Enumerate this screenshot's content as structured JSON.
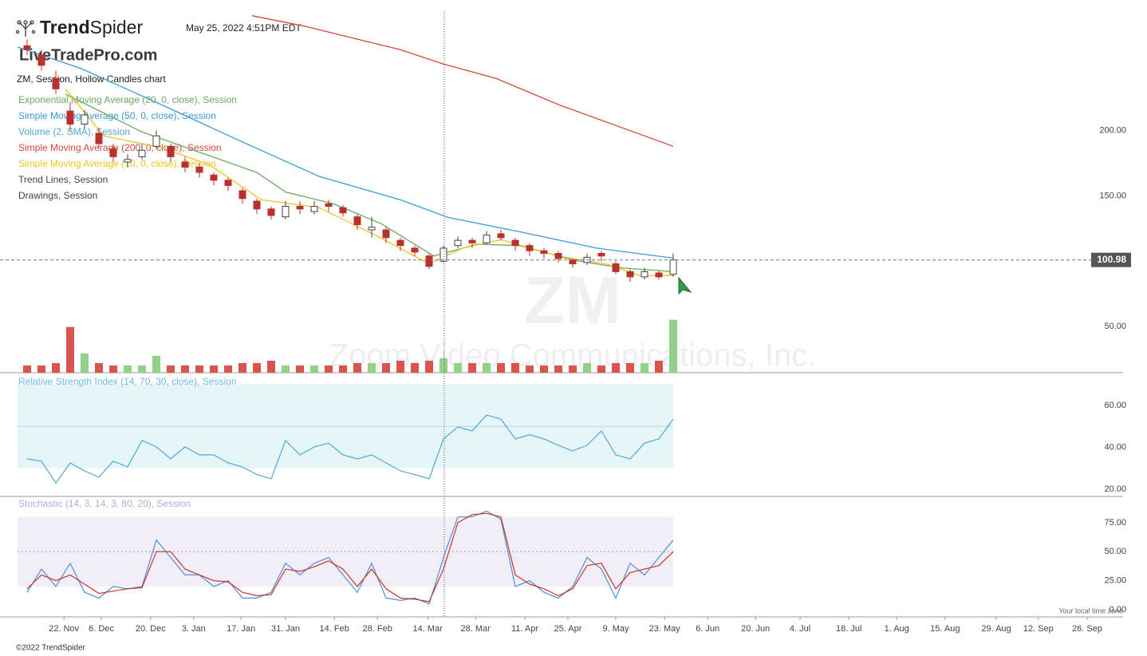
{
  "header": {
    "logo": {
      "bold": "Trend",
      "light": "Spider"
    },
    "timestamp": "May 25, 2022 4:51PM EDT",
    "watermark_site": "LiveTradePro.com",
    "chart_label": "ZM, Session, Hollow Candles chart"
  },
  "chart_data": [
    {
      "type": "candlestick",
      "symbol_watermark": "ZM",
      "company_watermark": "Zoom Video Communications, Inc.",
      "x": [
        2,
        5,
        8,
        11,
        14,
        17,
        20,
        23,
        26,
        29,
        32,
        35,
        38,
        41,
        44,
        47,
        50,
        53,
        56,
        59,
        62,
        65,
        68,
        71,
        74,
        77,
        80,
        83,
        86,
        89,
        92,
        95,
        98,
        101,
        104,
        107,
        110,
        113,
        116,
        119,
        122,
        125,
        128,
        131,
        134,
        137
      ],
      "candles": [
        [
          265,
          270,
          258,
          262
        ],
        [
          258,
          262,
          246,
          250
        ],
        [
          240,
          246,
          228,
          232
        ],
        [
          215,
          222,
          200,
          205
        ],
        [
          205,
          216,
          202,
          212
        ],
        [
          198,
          202,
          186,
          190
        ],
        [
          186,
          190,
          176,
          180
        ],
        [
          176,
          182,
          172,
          178
        ],
        [
          180,
          190,
          178,
          185
        ],
        [
          188,
          200,
          186,
          196
        ],
        [
          188,
          190,
          176,
          180
        ],
        [
          176,
          180,
          168,
          172
        ],
        [
          172,
          175,
          164,
          168
        ],
        [
          166,
          168,
          158,
          162
        ],
        [
          162,
          164,
          154,
          158
        ],
        [
          154,
          156,
          144,
          148
        ],
        [
          146,
          148,
          136,
          140
        ],
        [
          140,
          142,
          132,
          135
        ],
        [
          134,
          146,
          132,
          142
        ],
        [
          142,
          146,
          136,
          140
        ],
        [
          138,
          146,
          136,
          142
        ],
        [
          144,
          147,
          138,
          142
        ],
        [
          141,
          143,
          134,
          137
        ],
        [
          134,
          136,
          124,
          128
        ],
        [
          124,
          134,
          118,
          126
        ],
        [
          124,
          126,
          114,
          118
        ],
        [
          116,
          118,
          108,
          112
        ],
        [
          110,
          112,
          104,
          107
        ],
        [
          104,
          106,
          94,
          96
        ],
        [
          100,
          112,
          99,
          110
        ],
        [
          112,
          119,
          110,
          116
        ],
        [
          116,
          118,
          110,
          114
        ],
        [
          114,
          123,
          113,
          120
        ],
        [
          121,
          124,
          116,
          118
        ],
        [
          116,
          118,
          108,
          112
        ],
        [
          112,
          114,
          104,
          108
        ],
        [
          108,
          110,
          102,
          106
        ],
        [
          106,
          108,
          99,
          102
        ],
        [
          101,
          102,
          95,
          98
        ],
        [
          99,
          106,
          97,
          103
        ],
        [
          106,
          108,
          100,
          104
        ],
        [
          98,
          100,
          90,
          92
        ],
        [
          92,
          94,
          84,
          88
        ],
        [
          88,
          95,
          86,
          92
        ],
        [
          91,
          93,
          86,
          88
        ],
        [
          90,
          106,
          88,
          100.98
        ]
      ],
      "up_color": "#444444",
      "down_color": "#b8312f",
      "volume_up_color": "#93d08a",
      "volume_down_color": "#d9534f",
      "volume_ylim": [
        0,
        150
      ],
      "series": [
        {
          "name": "Exponential Moving Average (20, 0, close), Session",
          "color": "#6aaa64",
          "x": [
            10,
            26,
            38,
            50,
            56,
            66,
            76,
            87,
            96,
            105,
            116,
            126,
            137
          ],
          "values": [
            228,
            199,
            183.5,
            168,
            153,
            144,
            128.7,
            104,
            113,
            112,
            101,
            95,
            92
          ]
        },
        {
          "name": "Simple Moving Average (50, 0, close), Session",
          "color": "#3a9ad9",
          "x": [
            0,
            13,
            30,
            46,
            63,
            80,
            90,
            105,
            121,
            137
          ],
          "values": [
            264,
            248,
            220,
            193,
            165,
            147,
            133.5,
            122.5,
            110,
            102.4
          ]
        },
        {
          "name": "Volume (2, SMA), Session",
          "color": "#4fa8dc",
          "type": "bar",
          "axis": "volume",
          "values": [
            3,
            3,
            4,
            19,
            8,
            4,
            3,
            3,
            3,
            7,
            3,
            3,
            3,
            3,
            3,
            4,
            4,
            5,
            3,
            3,
            3,
            3,
            3,
            4,
            4,
            4,
            5,
            4,
            5,
            6,
            4,
            4,
            4,
            4,
            4,
            3,
            3,
            3,
            3,
            4,
            3,
            4,
            4,
            4,
            5,
            22
          ]
        },
        {
          "name": "Simple Moving Average (200, 0, close), Session",
          "color": "#d0493a",
          "x": [
            49,
            60,
            70,
            80,
            89,
            100,
            113,
            125,
            137
          ],
          "values": [
            288,
            280,
            271,
            262,
            251,
            240,
            220,
            204,
            188
          ]
        },
        {
          "name": "Simple Moving Average (10, 0, close), Session",
          "color": "#f0c419",
          "x": [
            10,
            18,
            30,
            40,
            51,
            63,
            75,
            86,
            93,
            101,
            113,
            123,
            130,
            137
          ],
          "values": [
            232,
            196,
            187,
            174,
            147,
            141,
            119.5,
            98,
            110,
            116.5,
            104,
            98,
            89,
            89
          ]
        }
      ],
      "legend_extra": [
        "Trend Lines, Session",
        "Drawings, Session"
      ],
      "last_price": 100.98,
      "xlim": [
        0,
        231
      ],
      "ylim": [
        14.6,
        290.9
      ],
      "yticks": [
        {
          "value": 50,
          "label": "50.00"
        },
        {
          "value": 150,
          "label": "150.00"
        },
        {
          "value": 200,
          "label": "200.00"
        }
      ]
    },
    {
      "type": "line",
      "title": "Relative Strength Index (14, 70, 30, close), Session",
      "x": [
        2,
        5,
        8,
        11,
        14,
        17,
        20,
        23,
        26,
        29,
        32,
        35,
        38,
        41,
        44,
        47,
        50,
        53,
        56,
        59,
        62,
        65,
        68,
        71,
        74,
        77,
        80,
        83,
        86,
        89,
        92,
        95,
        98,
        101,
        104,
        107,
        110,
        113,
        116,
        119,
        122,
        125,
        128,
        131,
        134,
        137
      ],
      "series": [
        {
          "name": "RSI",
          "color": "#4aa8e0",
          "values": [
            34.5,
            33.4,
            23,
            32.6,
            28.8,
            25.8,
            33.4,
            30.7,
            43.3,
            40.2,
            34.5,
            40.2,
            36.4,
            36.4,
            32.6,
            30.7,
            27,
            25,
            43.3,
            36.4,
            40.2,
            42,
            36.4,
            34.5,
            36.4,
            32.6,
            28.8,
            27,
            25,
            44,
            49.7,
            47.8,
            55.4,
            53.5,
            44,
            46,
            44,
            41,
            38.3,
            41,
            47.8,
            36.4,
            34.5,
            42,
            44,
            53.5
          ]
        }
      ],
      "band": [
        30,
        70
      ],
      "band_color": "#e6f6f8",
      "midline": 50,
      "midline_color": "#a8d8ec",
      "title_color": "#6bbbe0",
      "xlim": [
        0,
        231
      ],
      "ylim": [
        16.6,
        73.7
      ],
      "yticks": [
        {
          "value": 20,
          "label": "20.00"
        },
        {
          "value": 40,
          "label": "40.00"
        },
        {
          "value": 60,
          "label": "60.00"
        }
      ]
    },
    {
      "type": "line",
      "title": "Stochastic (14, 3, 14, 3, 80, 20), Session",
      "x": [
        2,
        5,
        8,
        11,
        14,
        17,
        20,
        23,
        26,
        29,
        32,
        35,
        38,
        41,
        44,
        47,
        50,
        53,
        56,
        59,
        62,
        65,
        68,
        71,
        74,
        77,
        80,
        83,
        86,
        89,
        92,
        95,
        98,
        101,
        104,
        107,
        110,
        113,
        116,
        119,
        122,
        125,
        128,
        131,
        134,
        137
      ],
      "series": [
        {
          "name": "%K",
          "color": "#4a8fe0",
          "values": [
            15,
            35,
            20,
            40,
            15,
            10,
            20,
            18,
            20,
            60,
            45,
            30,
            30,
            20,
            25,
            10,
            10,
            15,
            40,
            30,
            40,
            45,
            30,
            15,
            40,
            10,
            8,
            10,
            5,
            45,
            80,
            80,
            85,
            78,
            20,
            25,
            15,
            10,
            20,
            45,
            35,
            10,
            40,
            30,
            45,
            60
          ]
        },
        {
          "name": "%D",
          "color": "#d03020",
          "values": [
            18,
            30,
            25,
            30,
            22,
            14,
            16,
            18,
            19,
            50,
            50,
            35,
            30,
            25,
            24,
            15,
            12,
            13,
            35,
            33,
            37,
            42,
            35,
            20,
            35,
            18,
            10,
            9,
            7,
            35,
            75,
            82,
            83,
            80,
            30,
            22,
            18,
            12,
            18,
            38,
            40,
            18,
            32,
            35,
            38,
            50
          ]
        }
      ],
      "band": [
        20,
        80
      ],
      "band_color": "#f2eef8",
      "midline": 50,
      "midline_color": "#a890d8",
      "midline_dotted": true,
      "title_color": "#b8a8d8",
      "xlim": [
        0,
        231
      ],
      "ylim": [
        -6.2,
        95.6
      ],
      "yticks": [
        {
          "value": 0,
          "label": "0.00"
        },
        {
          "value": 25,
          "label": "25.00"
        },
        {
          "value": 50,
          "label": "50.00"
        },
        {
          "value": 75,
          "label": "75.00"
        }
      ],
      "xticks": [
        {
          "value": 9.7,
          "label": "22. Nov"
        },
        {
          "value": 17.5,
          "label": "6. Dec"
        },
        {
          "value": 27.8,
          "label": "20. Dec"
        },
        {
          "value": 36.8,
          "label": "3. Jan"
        },
        {
          "value": 46.7,
          "label": "17. Jan"
        },
        {
          "value": 56,
          "label": "31. Jan"
        },
        {
          "value": 66.2,
          "label": "14. Feb"
        },
        {
          "value": 75.2,
          "label": "28. Feb"
        },
        {
          "value": 85.7,
          "label": "14. Mar"
        },
        {
          "value": 95.7,
          "label": "28. Mar"
        },
        {
          "value": 106,
          "label": "11. Apr"
        },
        {
          "value": 115,
          "label": "25. Apr"
        },
        {
          "value": 125,
          "label": "9. May"
        },
        {
          "value": 135.2,
          "label": "23. May"
        },
        {
          "value": 144.2,
          "label": "6. Jun"
        },
        {
          "value": 154.2,
          "label": "20. Jun"
        },
        {
          "value": 163.5,
          "label": "4. Jul"
        },
        {
          "value": 173.7,
          "label": "18. Jul"
        },
        {
          "value": 183.7,
          "label": "1. Aug"
        },
        {
          "value": 193.8,
          "label": "15. Aug"
        },
        {
          "value": 204.5,
          "label": "29. Aug"
        },
        {
          "value": 213.3,
          "label": "12. Sep"
        },
        {
          "value": 223.5,
          "label": "26. Sep"
        }
      ]
    }
  ],
  "footer": {
    "copyright": "©2022 TrendSpider",
    "timezone": "Your local time zone"
  }
}
